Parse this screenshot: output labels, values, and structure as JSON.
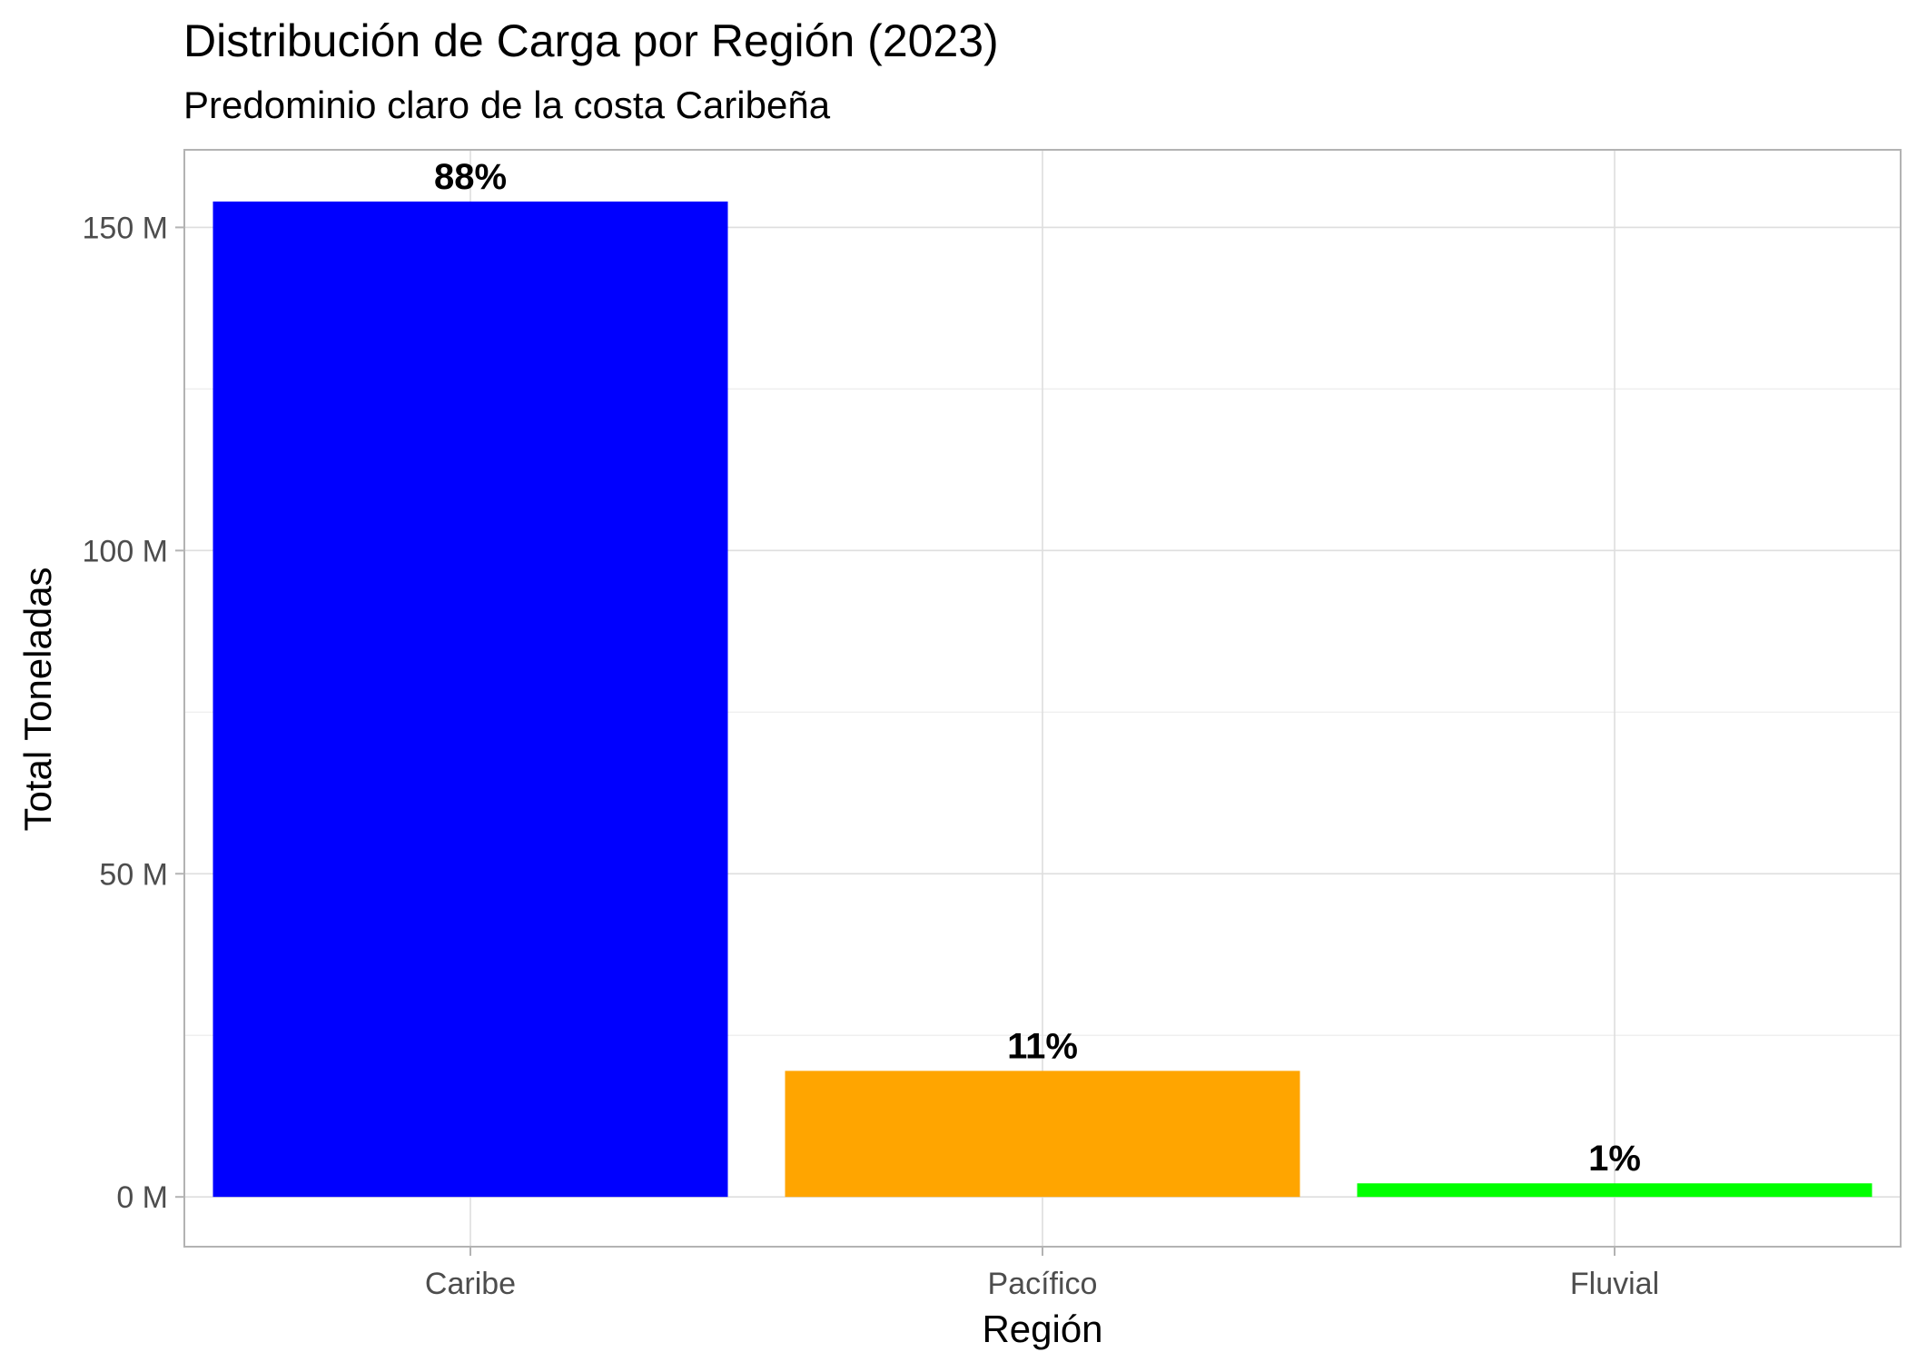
{
  "chart_data": {
    "type": "bar",
    "title": "Distribución de Carga por Región (2023)",
    "subtitle": "Predominio claro de la costa Caribeña",
    "xlabel": "Región",
    "ylabel": "Total Toneladas",
    "categories": [
      "Caribe",
      "Pacífico",
      "Fluvial"
    ],
    "values": [
      154000000,
      19500000,
      2100000
    ],
    "data_labels": [
      "88%",
      "11%",
      "1%"
    ],
    "colors": [
      "#0000ff",
      "#ffa500",
      "#00ff00"
    ],
    "ylim": [
      -7700000,
      162000000
    ],
    "y_ticks": [
      0,
      50000000,
      100000000,
      150000000
    ],
    "y_tick_labels": [
      "0 M",
      "50 M",
      "100 M",
      "150 M"
    ],
    "y_minor_ticks": [
      25000000,
      75000000,
      125000000
    ],
    "grid": true,
    "legend": "none"
  }
}
